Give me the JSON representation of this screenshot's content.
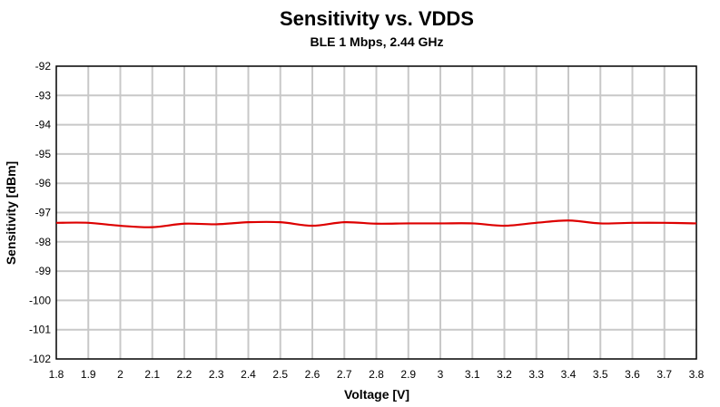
{
  "chart_data": {
    "type": "line",
    "title": "Sensitivity vs. VDDS",
    "subtitle": "BLE 1 Mbps, 2.44 GHz",
    "xlabel": "Voltage [V]",
    "ylabel": "Sensitivity [dBm]",
    "xlim": [
      1.8,
      3.8
    ],
    "ylim": [
      -102,
      -92
    ],
    "xticks": [
      "1.8",
      "1.9",
      "2",
      "2.1",
      "2.2",
      "2.3",
      "2.4",
      "2.5",
      "2.6",
      "2.7",
      "2.8",
      "2.9",
      "3",
      "3.1",
      "3.2",
      "3.3",
      "3.4",
      "3.5",
      "3.6",
      "3.7",
      "3.8"
    ],
    "yticks": [
      "-92",
      "-93",
      "-94",
      "-95",
      "-96",
      "-97",
      "-98",
      "-99",
      "-100",
      "-101",
      "-102"
    ],
    "grid": true,
    "series": [
      {
        "color": "#dd0000",
        "x": [
          1.8,
          1.9,
          2.0,
          2.1,
          2.2,
          2.3,
          2.4,
          2.5,
          2.6,
          2.7,
          2.8,
          2.9,
          3.0,
          3.1,
          3.2,
          3.3,
          3.4,
          3.5,
          3.6,
          3.7,
          3.8
        ],
        "y": [
          -97.35,
          -97.35,
          -97.45,
          -97.5,
          -97.38,
          -97.4,
          -97.33,
          -97.33,
          -97.45,
          -97.33,
          -97.38,
          -97.37,
          -97.37,
          -97.37,
          -97.45,
          -97.35,
          -97.27,
          -97.37,
          -97.35,
          -97.35,
          -97.37
        ]
      }
    ]
  }
}
